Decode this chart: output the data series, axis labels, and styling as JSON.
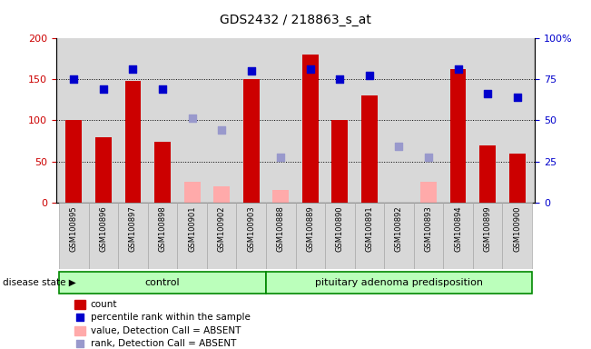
{
  "title": "GDS2432 / 218863_s_at",
  "samples": [
    "GSM100895",
    "GSM100896",
    "GSM100897",
    "GSM100898",
    "GSM100901",
    "GSM100902",
    "GSM100903",
    "GSM100888",
    "GSM100889",
    "GSM100890",
    "GSM100891",
    "GSM100892",
    "GSM100893",
    "GSM100894",
    "GSM100899",
    "GSM100900"
  ],
  "n_control": 7,
  "n_pituitary": 9,
  "count_values": [
    100,
    80,
    148,
    74,
    null,
    null,
    150,
    null,
    180,
    100,
    130,
    null,
    null,
    163,
    70,
    60
  ],
  "absent_values": [
    null,
    null,
    null,
    null,
    25,
    20,
    null,
    15,
    null,
    null,
    null,
    null,
    25,
    null,
    null,
    null
  ],
  "percentile_vals": [
    150,
    138,
    163,
    138,
    null,
    null,
    160,
    null,
    163,
    150,
    155,
    null,
    null,
    163,
    133,
    128
  ],
  "absent_rank": [
    null,
    null,
    null,
    null,
    103,
    88,
    null,
    55,
    null,
    null,
    null,
    68,
    55,
    null,
    null,
    null
  ],
  "ylim": [
    0,
    200
  ],
  "yticks": [
    0,
    50,
    100,
    150,
    200
  ],
  "y2ticks": [
    0,
    25,
    50,
    75,
    100
  ],
  "bar_color": "#cc0000",
  "bar_absent_color": "#ffaaaa",
  "dot_color": "#0000cc",
  "dot_absent_color": "#9999cc",
  "plot_bg": "#d8d8d8",
  "group_bg": "#bbffbb",
  "group_border": "#008800",
  "control_label": "control",
  "pituitary_label": "pituitary adenoma predisposition",
  "legend_items": [
    {
      "label": "count",
      "color": "#cc0000",
      "type": "bar"
    },
    {
      "label": "percentile rank within the sample",
      "color": "#0000cc",
      "type": "dot"
    },
    {
      "label": "value, Detection Call = ABSENT",
      "color": "#ffaaaa",
      "type": "bar"
    },
    {
      "label": "rank, Detection Call = ABSENT",
      "color": "#9999cc",
      "type": "dot"
    }
  ]
}
